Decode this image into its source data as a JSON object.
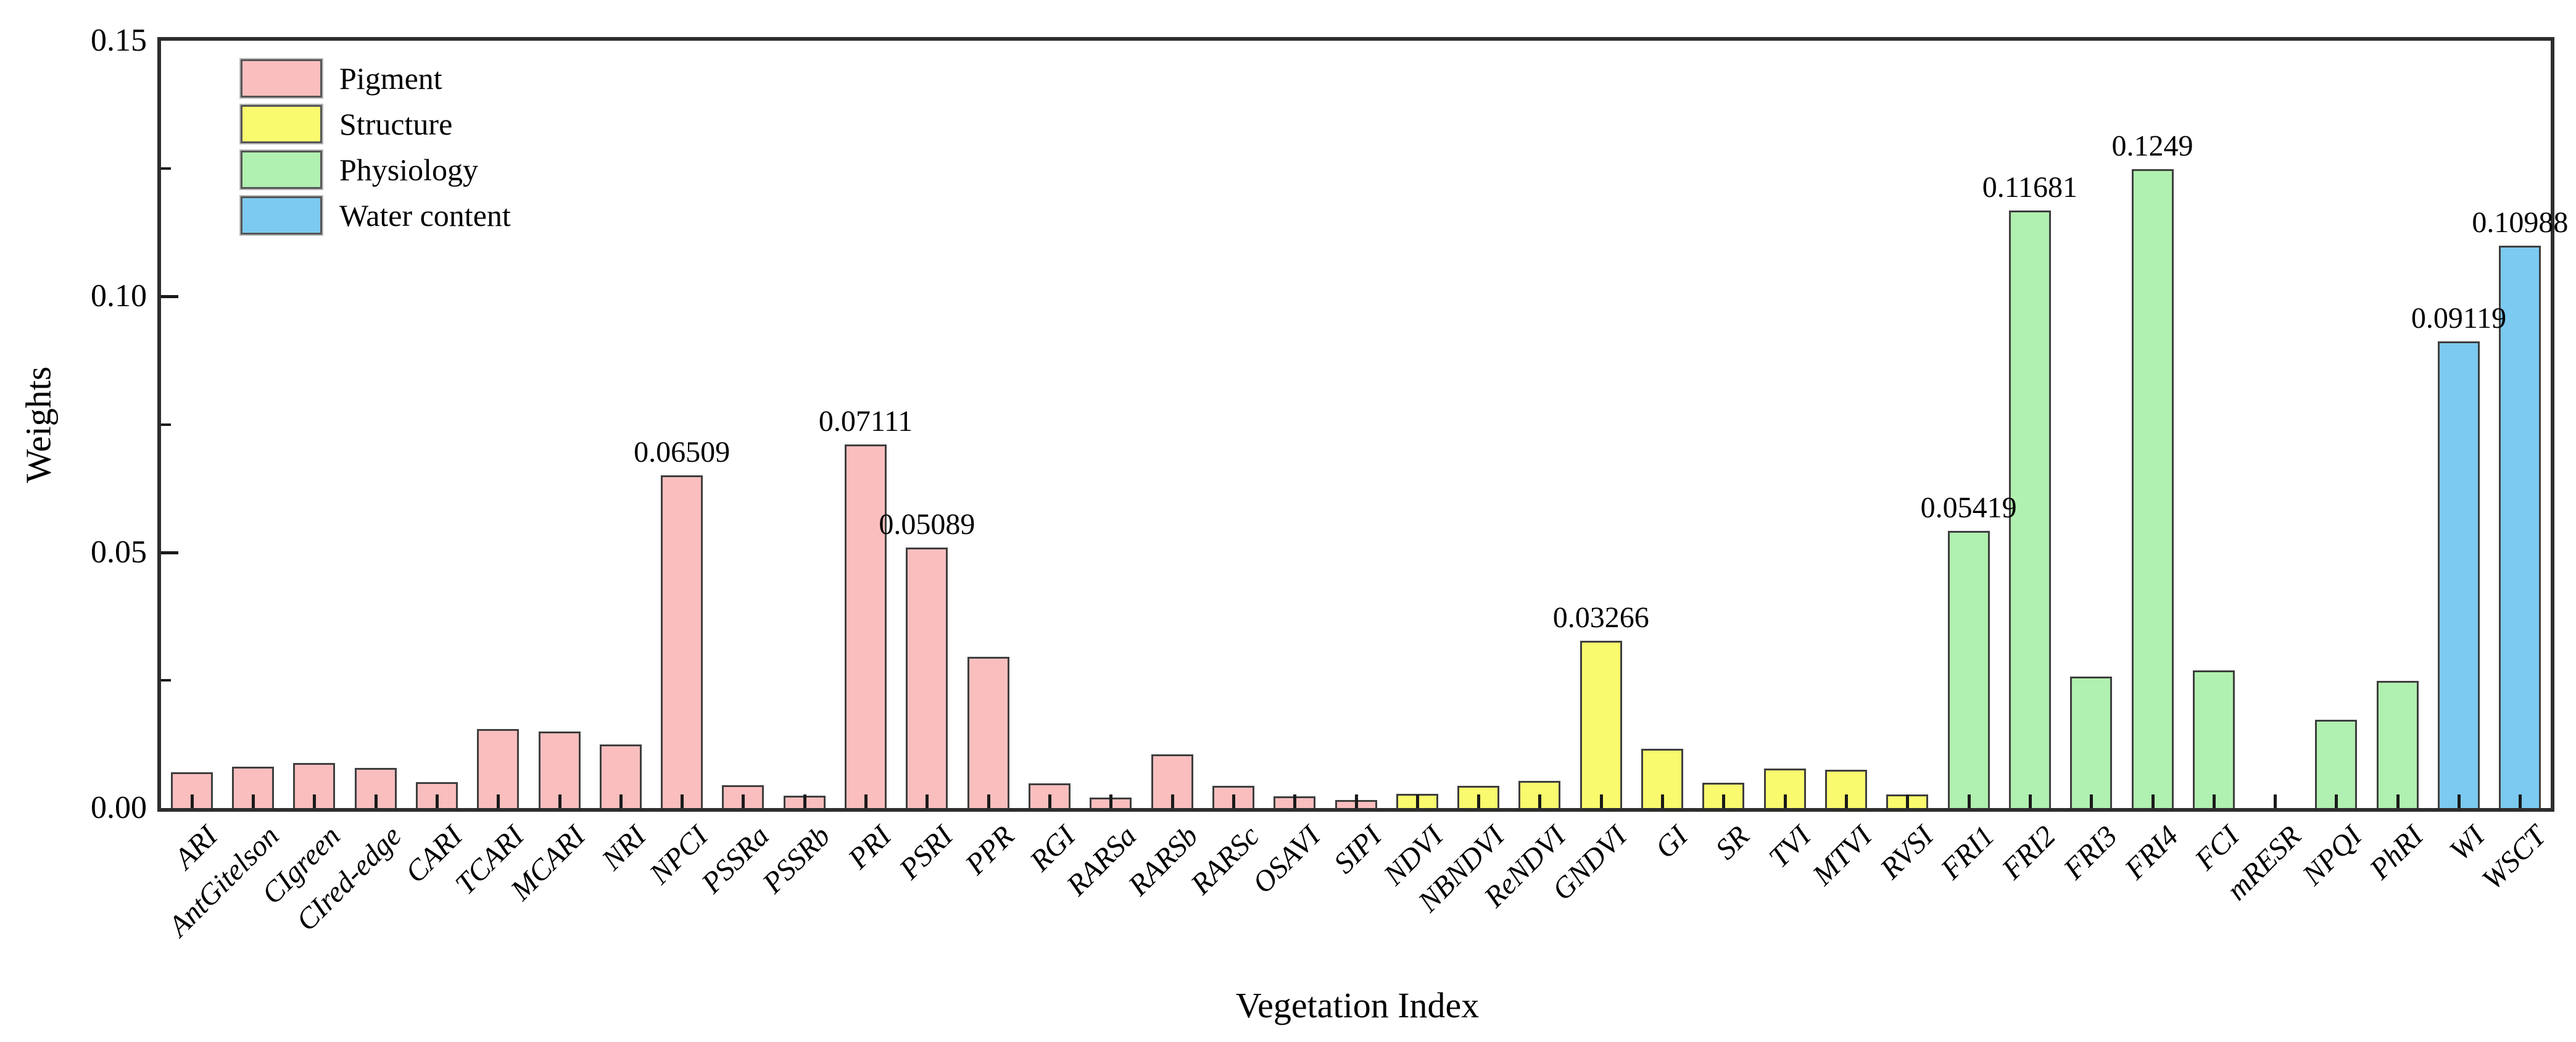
{
  "chart_data": {
    "type": "bar",
    "title": "",
    "xlabel": "Vegetation Index",
    "ylabel": "Weights",
    "ylim": [
      0,
      0.15
    ],
    "ytick_labels": [
      "0.00",
      "0.05",
      "0.10",
      "0.15"
    ],
    "yticks": [
      0.0,
      0.05,
      0.1,
      0.15
    ],
    "minor_yticks": [
      0.025,
      0.075,
      0.125
    ],
    "grid": false,
    "legend_position": "upper-left-inside",
    "groups": [
      {
        "name": "Pigment",
        "color": "#fabebe"
      },
      {
        "name": "Structure",
        "color": "#fafa6e"
      },
      {
        "name": "Physiology",
        "color": "#b0f0b0"
      },
      {
        "name": "Water content",
        "color": "#7ccaf0"
      }
    ],
    "bars": [
      {
        "category": "ARI",
        "group": "Pigment",
        "value": 0.007
      },
      {
        "category": "AntGitelson",
        "group": "Pigment",
        "value": 0.0081
      },
      {
        "category": "CIgreen",
        "group": "Pigment",
        "value": 0.0088
      },
      {
        "category": "CIred-edge",
        "group": "Pigment",
        "value": 0.0079
      },
      {
        "category": "CARI",
        "group": "Pigment",
        "value": 0.0051
      },
      {
        "category": "TCARI",
        "group": "Pigment",
        "value": 0.0155
      },
      {
        "category": "MCARI",
        "group": "Pigment",
        "value": 0.015
      },
      {
        "category": "NRI",
        "group": "Pigment",
        "value": 0.0124
      },
      {
        "category": "NPCI",
        "group": "Pigment",
        "value": 0.06509,
        "label": "0.06509"
      },
      {
        "category": "PSSRa",
        "group": "Pigment",
        "value": 0.0045
      },
      {
        "category": "PSSRb",
        "group": "Pigment",
        "value": 0.0024
      },
      {
        "category": "PRI",
        "group": "Pigment",
        "value": 0.07111,
        "label": "0.07111"
      },
      {
        "category": "PSRI",
        "group": "Pigment",
        "value": 0.05089,
        "label": "0.05089"
      },
      {
        "category": "PPR",
        "group": "Pigment",
        "value": 0.0296
      },
      {
        "category": "RGI",
        "group": "Pigment",
        "value": 0.0048
      },
      {
        "category": "RARSa",
        "group": "Pigment",
        "value": 0.0021
      },
      {
        "category": "RARSb",
        "group": "Pigment",
        "value": 0.0105
      },
      {
        "category": "RARSc",
        "group": "Pigment",
        "value": 0.0044
      },
      {
        "category": "OSAVI",
        "group": "Pigment",
        "value": 0.0023
      },
      {
        "category": "SIPI",
        "group": "Pigment",
        "value": 0.0016
      },
      {
        "category": "NDVI",
        "group": "Structure",
        "value": 0.0028
      },
      {
        "category": "NBNDVI",
        "group": "Structure",
        "value": 0.0043
      },
      {
        "category": "ReNDVI",
        "group": "Structure",
        "value": 0.0053
      },
      {
        "category": "GNDVI",
        "group": "Structure",
        "value": 0.03266,
        "label": "0.03266"
      },
      {
        "category": "GI",
        "group": "Structure",
        "value": 0.0116
      },
      {
        "category": "SR",
        "group": "Structure",
        "value": 0.005
      },
      {
        "category": "TVI",
        "group": "Structure",
        "value": 0.0077
      },
      {
        "category": "MTVI",
        "group": "Structure",
        "value": 0.0075
      },
      {
        "category": "RVSI",
        "group": "Structure",
        "value": 0.0027
      },
      {
        "category": "FRI1",
        "group": "Physiology",
        "value": 0.05419,
        "label": "0.05419"
      },
      {
        "category": "FRI2",
        "group": "Physiology",
        "value": 0.11681,
        "label": "0.11681"
      },
      {
        "category": "FRI3",
        "group": "Physiology",
        "value": 0.0257
      },
      {
        "category": "FRI4",
        "group": "Physiology",
        "value": 0.1249,
        "label": "0.1249"
      },
      {
        "category": "FCI",
        "group": "Physiology",
        "value": 0.0269
      },
      {
        "category": "mRESR",
        "group": "Physiology",
        "value": 0.0
      },
      {
        "category": "NPQI",
        "group": "Physiology",
        "value": 0.0173
      },
      {
        "category": "PhRI",
        "group": "Physiology",
        "value": 0.0248
      },
      {
        "category": "WI",
        "group": "Water content",
        "value": 0.09119,
        "label": "0.09119"
      },
      {
        "category": "WSCT",
        "group": "Water content",
        "value": 0.10988,
        "label": "0.10988"
      }
    ]
  },
  "colors": {
    "bar_edge": "#3f3f3f",
    "axis": "#2e2e2e",
    "text": "#000000",
    "background": "#ffffff"
  }
}
